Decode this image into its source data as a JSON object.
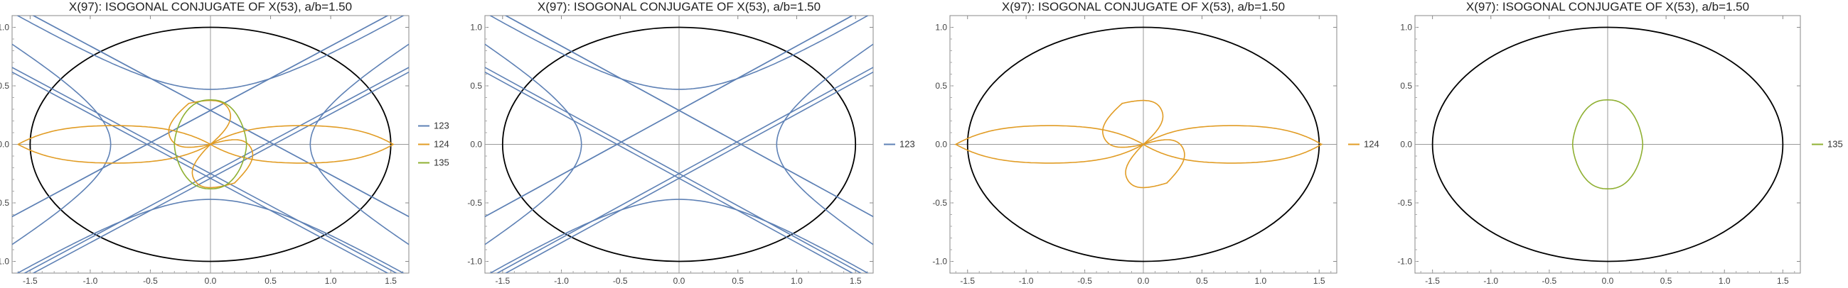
{
  "chart_data": [
    {
      "type": "line",
      "title": "X(97): ISOGONAL CONJUGATE OF X(53), a/b=1.50",
      "xlim": [
        -1.65,
        1.65
      ],
      "ylim": [
        -1.1,
        1.1
      ],
      "xticks": [
        "-1.5",
        "-1.0",
        "-0.5",
        "0.0",
        "0.5",
        "1.0",
        "1.5"
      ],
      "yticks": [
        "-1.0",
        "-0.5",
        "0.0",
        "0.5",
        "1.0"
      ],
      "xtick_values": [
        -1.5,
        -1.0,
        -0.5,
        0.0,
        0.5,
        1.0,
        1.5
      ],
      "ytick_values": [
        -1.0,
        -0.5,
        0.0,
        0.5,
        1.0
      ],
      "legend_position": "right",
      "ellipse": {
        "a": 1.5,
        "b": 1.0,
        "color": "#000000"
      },
      "series": [
        {
          "name": "123",
          "color": "#5e81b5",
          "curve": "hyperbola-lines",
          "vertex_y": 0.47,
          "vertex_x": 0.83,
          "asymptote_slope": 0.62,
          "line_intercept": 0.29,
          "line_slope": 0.55
        },
        {
          "name": "124",
          "color": "#e19c24",
          "curve": "lobes",
          "lobes": [
            [
              1.52,
              0.0
            ],
            [
              -1.6,
              0.0
            ],
            [
              -0.18,
              0.35
            ],
            [
              0.2,
              -0.33
            ]
          ]
        },
        {
          "name": "135",
          "color": "#8fb032",
          "curve": "oval",
          "rx": 0.3,
          "ry": 0.38
        }
      ]
    },
    {
      "type": "line",
      "title": "X(97): ISOGONAL CONJUGATE OF X(53), a/b=1.50",
      "xlim": [
        -1.65,
        1.65
      ],
      "ylim": [
        -1.1,
        1.1
      ],
      "xticks": [
        "-1.5",
        "-1.0",
        "-0.5",
        "0.0",
        "0.5",
        "1.0",
        "1.5"
      ],
      "yticks": [
        "-1.0",
        "-0.5",
        "0.0",
        "0.5",
        "1.0"
      ],
      "xtick_values": [
        -1.5,
        -1.0,
        -0.5,
        0.0,
        0.5,
        1.0,
        1.5
      ],
      "ytick_values": [
        -1.0,
        -0.5,
        0.0,
        0.5,
        1.0
      ],
      "legend_position": "right",
      "ellipse": {
        "a": 1.5,
        "b": 1.0,
        "color": "#000000"
      },
      "series": [
        {
          "name": "123",
          "color": "#5e81b5",
          "curve": "hyperbola-lines",
          "vertex_y": 0.47,
          "vertex_x": 0.83,
          "asymptote_slope": 0.62,
          "line_intercept": 0.29,
          "line_slope": 0.55
        }
      ]
    },
    {
      "type": "line",
      "title": "X(97): ISOGONAL CONJUGATE OF X(53), a/b=1.50",
      "xlim": [
        -1.65,
        1.65
      ],
      "ylim": [
        -1.1,
        1.1
      ],
      "xticks": [
        "-1.5",
        "-1.0",
        "-0.5",
        "0.0",
        "0.5",
        "1.0",
        "1.5"
      ],
      "yticks": [
        "-1.0",
        "-0.5",
        "0.0",
        "0.5",
        "1.0"
      ],
      "xtick_values": [
        -1.5,
        -1.0,
        -0.5,
        0.0,
        0.5,
        1.0,
        1.5
      ],
      "ytick_values": [
        -1.0,
        -0.5,
        0.0,
        0.5,
        1.0
      ],
      "legend_position": "right",
      "ellipse": {
        "a": 1.5,
        "b": 1.0,
        "color": "#000000"
      },
      "series": [
        {
          "name": "124",
          "color": "#e19c24",
          "curve": "lobes",
          "lobes": [
            [
              1.52,
              0.0
            ],
            [
              -1.6,
              0.0
            ],
            [
              -0.18,
              0.35
            ],
            [
              0.2,
              -0.33
            ]
          ]
        }
      ]
    },
    {
      "type": "line",
      "title": "X(97): ISOGONAL CONJUGATE OF X(53), a/b=1.50",
      "xlim": [
        -1.65,
        1.65
      ],
      "ylim": [
        -1.1,
        1.1
      ],
      "xticks": [
        "-1.5",
        "-1.0",
        "-0.5",
        "0.0",
        "0.5",
        "1.0",
        "1.5"
      ],
      "yticks": [
        "-1.0",
        "-0.5",
        "0.0",
        "0.5",
        "1.0"
      ],
      "xtick_values": [
        -1.5,
        -1.0,
        -0.5,
        0.0,
        0.5,
        1.0,
        1.5
      ],
      "ytick_values": [
        -1.0,
        -0.5,
        0.0,
        0.5,
        1.0
      ],
      "legend_position": "right",
      "ellipse": {
        "a": 1.5,
        "b": 1.0,
        "color": "#000000"
      },
      "series": [
        {
          "name": "135",
          "color": "#8fb032",
          "curve": "oval",
          "rx": 0.3,
          "ry": 0.38
        }
      ]
    }
  ]
}
